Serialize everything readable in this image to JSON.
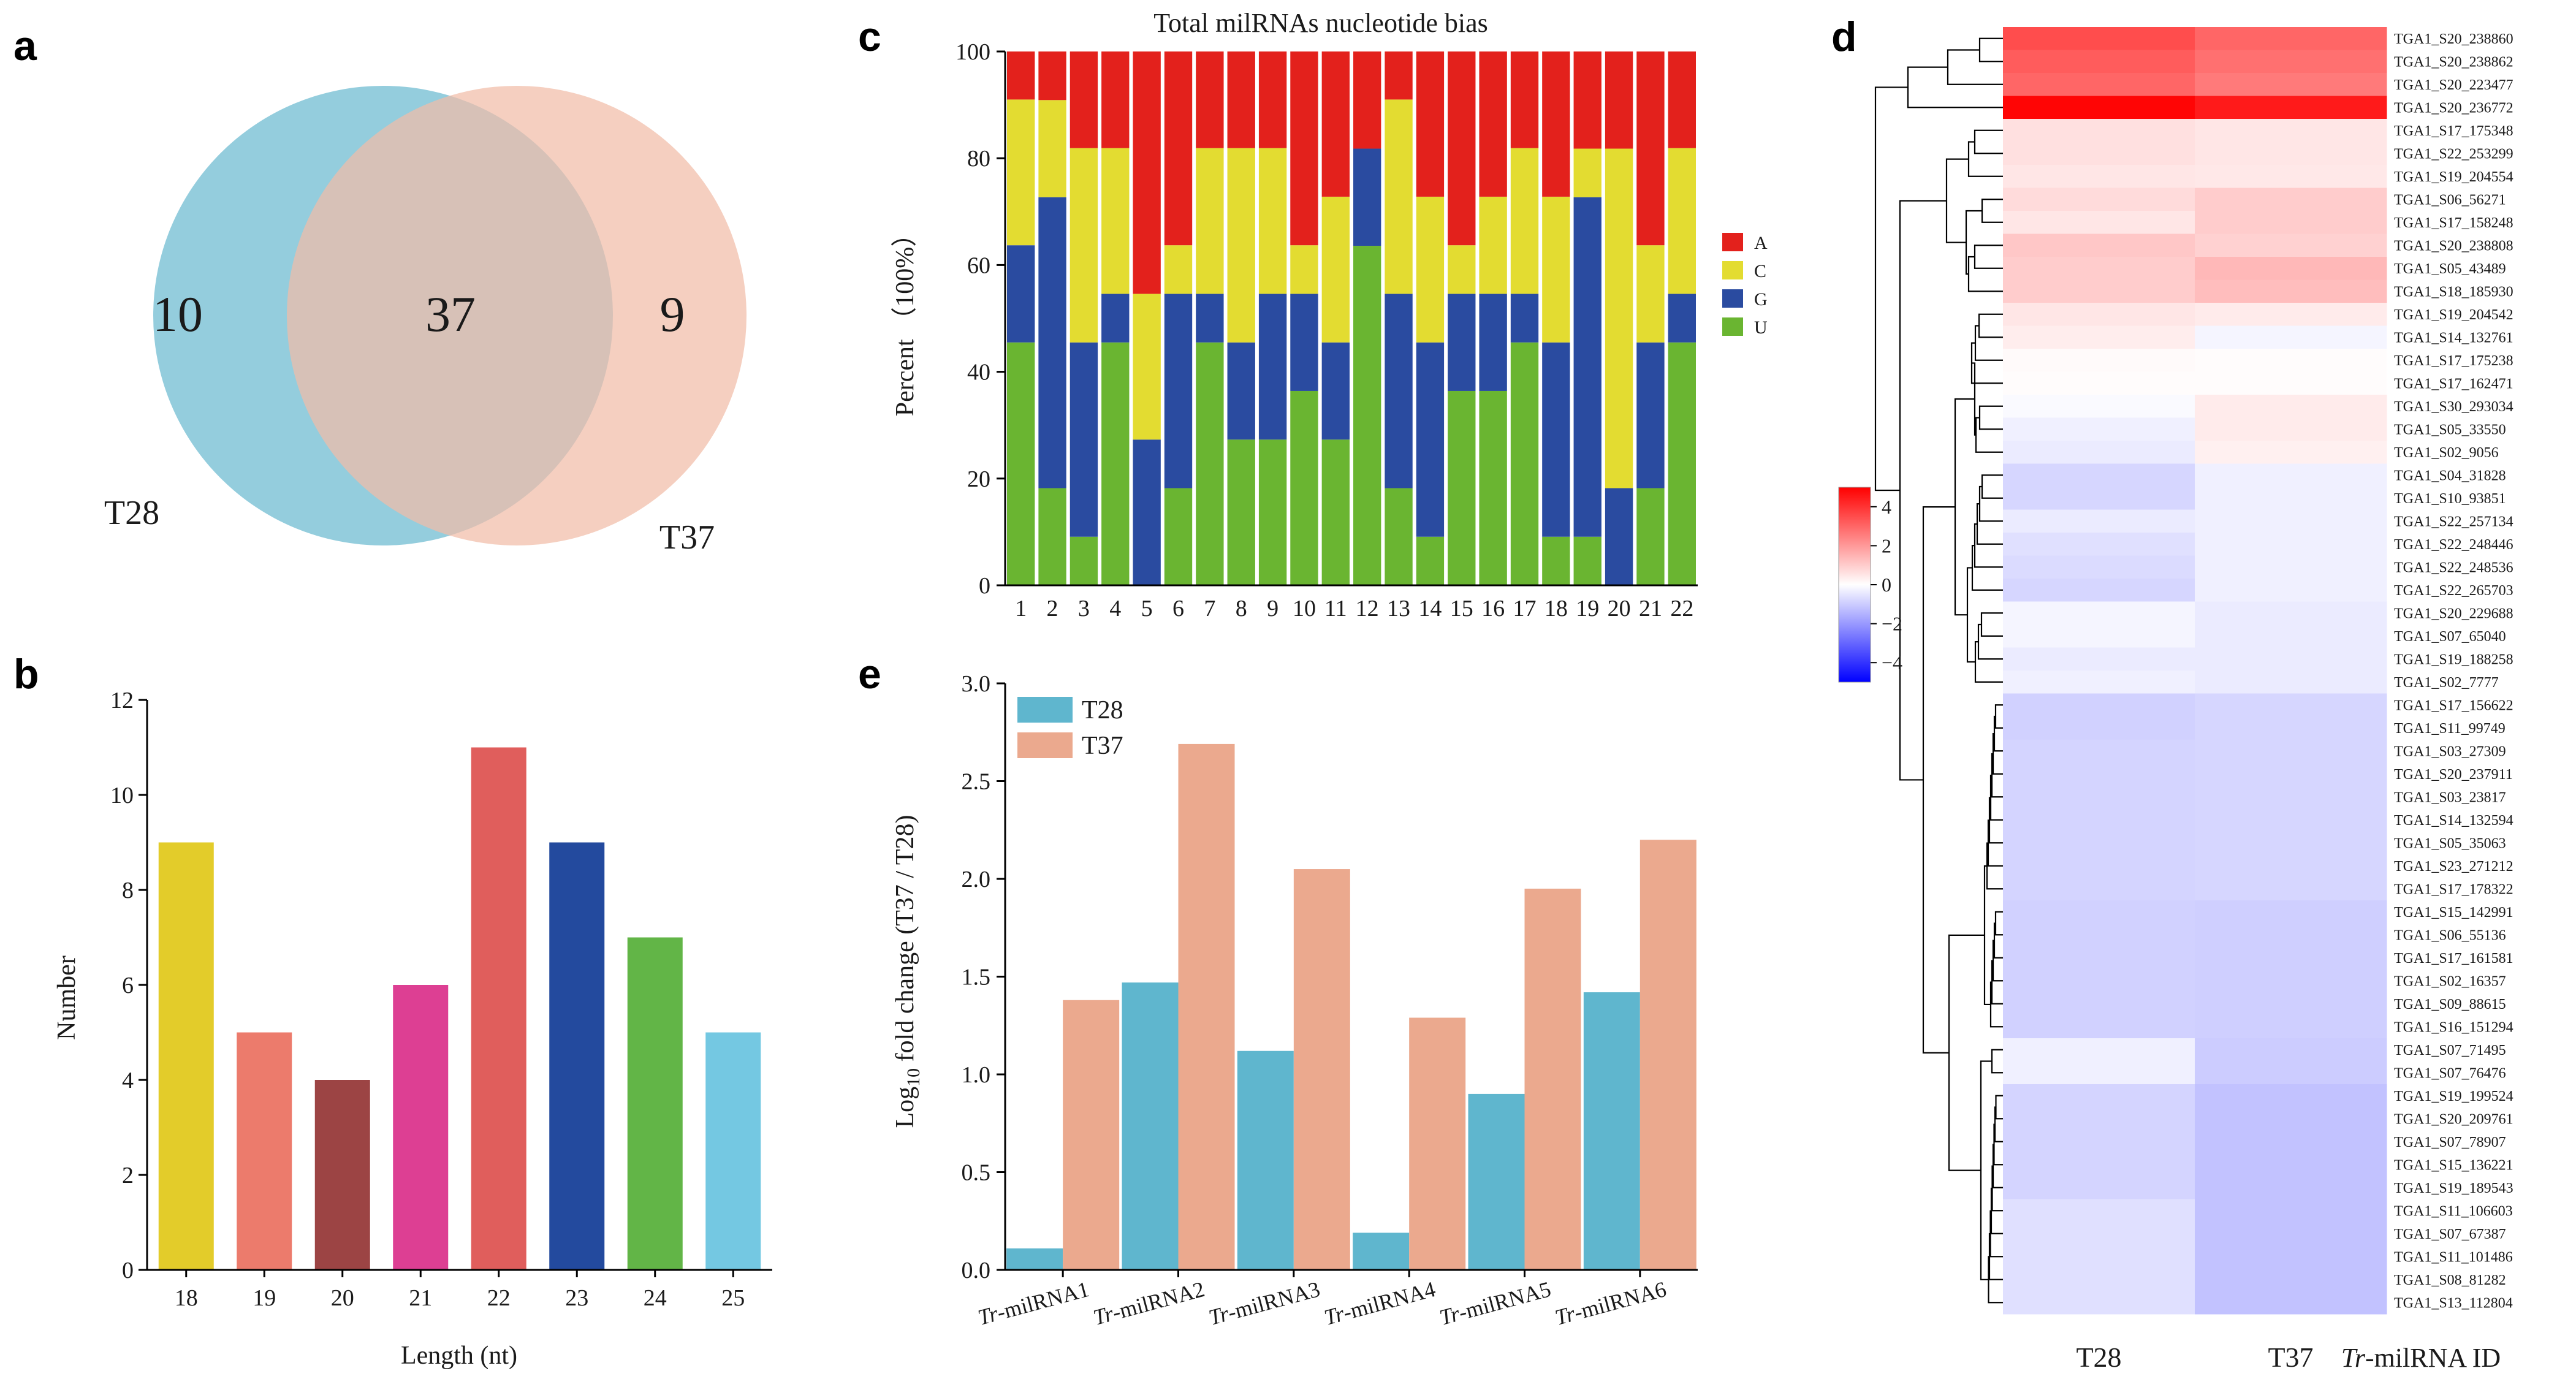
{
  "panels": {
    "a": {
      "letter": "a",
      "chart_type": "venn",
      "sets": [
        {
          "name": "T28",
          "color": "#8ecadb",
          "only": "10"
        },
        {
          "name": "T37",
          "color": "#f1bda8",
          "only": "9"
        }
      ],
      "shared": "37"
    },
    "b": {
      "letter": "b",
      "xlabel": "Length (nt)",
      "ylabel": "Number",
      "yticks": [
        "0",
        "2",
        "4",
        "6",
        "8",
        "10",
        "12"
      ]
    },
    "c": {
      "letter": "c",
      "title": "Total milRNAs nucleotide bias",
      "ylabel": "Percent （100%）",
      "yticks": [
        "0",
        "20",
        "40",
        "60",
        "80",
        "100"
      ]
    },
    "d": {
      "letter": "d",
      "columns": [
        "T28",
        "T37"
      ],
      "id_label_italic": "Tr",
      "id_label_rest": "-milRNA  ID",
      "colorbar_ticks": [
        "4",
        "2",
        "0",
        "−2",
        "−4"
      ],
      "colorbar_colors": {
        "high": "#ff0000",
        "mid": "#ffffff",
        "low": "#0000ff"
      }
    },
    "e": {
      "letter": "e",
      "ylabel_pre": "Log",
      "ylabel_sub": "10",
      "ylabel_post": " fold change (T37 / T28)",
      "yticks": [
        "0.0",
        "0.5",
        "1.0",
        "1.5",
        "2.0",
        "2.5",
        "3.0"
      ],
      "label_prefix": "Tr"
    }
  },
  "chart_data": [
    {
      "panel": "b",
      "type": "bar",
      "categories": [
        "18",
        "19",
        "20",
        "21",
        "22",
        "23",
        "24",
        "25"
      ],
      "values": [
        9,
        5,
        4,
        6,
        11,
        9,
        7,
        5
      ],
      "colors": [
        "#e3cc2a",
        "#ec7b6c",
        "#9c4444",
        "#dd3f93",
        "#e05e5c",
        "#234a9e",
        "#62b547",
        "#74c8e2"
      ],
      "xlabel": "Length (nt)",
      "ylabel": "Number",
      "ylim": [
        0,
        12
      ]
    },
    {
      "panel": "c",
      "type": "bar",
      "stacked": true,
      "title": "Total milRNAs nucleotide bias",
      "ylabel": "Percent （100%）",
      "ylim": [
        0,
        100
      ],
      "categories": [
        "1",
        "2",
        "3",
        "4",
        "5",
        "6",
        "7",
        "8",
        "9",
        "10",
        "11",
        "12",
        "13",
        "14",
        "15",
        "16",
        "17",
        "18",
        "19",
        "20",
        "21",
        "22"
      ],
      "series": [
        {
          "name": "U",
          "color": "#6ab531",
          "values": [
            45.5,
            18.2,
            9.1,
            45.5,
            0,
            18.2,
            45.5,
            27.3,
            27.3,
            36.4,
            27.3,
            63.6,
            18.2,
            9.1,
            36.4,
            36.4,
            45.5,
            9.1,
            9.1,
            0,
            18.2,
            45.5
          ]
        },
        {
          "name": "G",
          "color": "#2a4ba0",
          "values": [
            18.2,
            54.5,
            36.4,
            9.1,
            27.3,
            36.4,
            9.1,
            18.2,
            27.3,
            18.2,
            18.2,
            18.2,
            36.4,
            36.4,
            18.2,
            18.2,
            9.1,
            36.4,
            63.6,
            18.2,
            27.3,
            9.1
          ]
        },
        {
          "name": "C",
          "color": "#e3dc31",
          "values": [
            27.3,
            18.2,
            36.4,
            27.3,
            27.3,
            9.1,
            27.3,
            36.4,
            27.3,
            9.1,
            27.3,
            0,
            36.4,
            27.3,
            9.1,
            18.2,
            27.3,
            27.3,
            9.1,
            63.6,
            18.2,
            27.3
          ]
        },
        {
          "name": "A",
          "color": "#e3211c",
          "values": [
            9.0,
            9.1,
            18.1,
            18.1,
            45.4,
            36.3,
            18.1,
            18.1,
            18.1,
            36.3,
            27.2,
            18.2,
            9.0,
            27.2,
            36.3,
            27.2,
            18.1,
            27.2,
            18.2,
            18.2,
            36.3,
            18.1
          ]
        }
      ],
      "legend_order": [
        "A",
        "C",
        "G",
        "U"
      ],
      "legend": "right"
    },
    {
      "panel": "d",
      "type": "heatmap",
      "columns": [
        "T28",
        "T37"
      ],
      "vmin": -5,
      "vmax": 5,
      "rows": [
        {
          "id": "TGA1_S20_238860",
          "values": [
            3.5,
            3.0
          ]
        },
        {
          "id": "TGA1_S20_238862",
          "values": [
            3.2,
            2.8
          ]
        },
        {
          "id": "TGA1_S20_223477",
          "values": [
            3.0,
            2.6
          ]
        },
        {
          "id": "TGA1_S20_236772",
          "values": [
            4.9,
            4.5
          ]
        },
        {
          "id": "TGA1_S17_175348",
          "values": [
            0.6,
            0.5
          ]
        },
        {
          "id": "TGA1_S22_253299",
          "values": [
            0.6,
            0.5
          ]
        },
        {
          "id": "TGA1_S19_204554",
          "values": [
            0.5,
            0.45
          ]
        },
        {
          "id": "TGA1_S06_56271",
          "values": [
            0.7,
            1.0
          ]
        },
        {
          "id": "TGA1_S17_158248",
          "values": [
            0.5,
            1.0
          ]
        },
        {
          "id": "TGA1_S20_238808",
          "values": [
            1.1,
            0.9
          ]
        },
        {
          "id": "TGA1_S05_43489",
          "values": [
            1.0,
            1.4
          ]
        },
        {
          "id": "TGA1_S18_185930",
          "values": [
            1.0,
            1.3
          ]
        },
        {
          "id": "TGA1_S19_204542",
          "values": [
            0.5,
            0.4
          ]
        },
        {
          "id": "TGA1_S14_132761",
          "values": [
            0.35,
            -0.2
          ]
        },
        {
          "id": "TGA1_S17_175238",
          "values": [
            0.1,
            0.05
          ]
        },
        {
          "id": "TGA1_S17_162471",
          "values": [
            0.05,
            0.05
          ]
        },
        {
          "id": "TGA1_S30_293034",
          "values": [
            -0.1,
            0.4
          ]
        },
        {
          "id": "TGA1_S05_33550",
          "values": [
            -0.3,
            0.4
          ]
        },
        {
          "id": "TGA1_S02_9056",
          "values": [
            -0.4,
            0.3
          ]
        },
        {
          "id": "TGA1_S04_31828",
          "values": [
            -0.8,
            -0.3
          ]
        },
        {
          "id": "TGA1_S10_93851",
          "values": [
            -0.8,
            -0.3
          ]
        },
        {
          "id": "TGA1_S22_257134",
          "values": [
            -0.4,
            -0.3
          ]
        },
        {
          "id": "TGA1_S22_248446",
          "values": [
            -0.6,
            -0.3
          ]
        },
        {
          "id": "TGA1_S22_248536",
          "values": [
            -0.7,
            -0.3
          ]
        },
        {
          "id": "TGA1_S22_265703",
          "values": [
            -0.8,
            -0.3
          ]
        },
        {
          "id": "TGA1_S20_229688",
          "values": [
            -0.2,
            -0.4
          ]
        },
        {
          "id": "TGA1_S07_65040",
          "values": [
            -0.2,
            -0.4
          ]
        },
        {
          "id": "TGA1_S19_188258",
          "values": [
            -0.4,
            -0.4
          ]
        },
        {
          "id": "TGA1_S02_7777",
          "values": [
            -0.3,
            -0.4
          ]
        },
        {
          "id": "TGA1_S17_156622",
          "values": [
            -0.9,
            -0.8
          ]
        },
        {
          "id": "TGA1_S11_99749",
          "values": [
            -0.9,
            -0.8
          ]
        },
        {
          "id": "TGA1_S03_27309",
          "values": [
            -0.85,
            -0.8
          ]
        },
        {
          "id": "TGA1_S20_237911",
          "values": [
            -0.85,
            -0.8
          ]
        },
        {
          "id": "TGA1_S03_23817",
          "values": [
            -0.85,
            -0.8
          ]
        },
        {
          "id": "TGA1_S14_132594",
          "values": [
            -0.85,
            -0.8
          ]
        },
        {
          "id": "TGA1_S05_35063",
          "values": [
            -0.85,
            -0.8
          ]
        },
        {
          "id": "TGA1_S23_271212",
          "values": [
            -0.85,
            -0.8
          ]
        },
        {
          "id": "TGA1_S17_178322",
          "values": [
            -0.85,
            -0.8
          ]
        },
        {
          "id": "TGA1_S15_142991",
          "values": [
            -0.9,
            -0.95
          ]
        },
        {
          "id": "TGA1_S06_55136",
          "values": [
            -0.9,
            -0.95
          ]
        },
        {
          "id": "TGA1_S17_161581",
          "values": [
            -0.9,
            -0.95
          ]
        },
        {
          "id": "TGA1_S02_16357",
          "values": [
            -0.9,
            -0.95
          ]
        },
        {
          "id": "TGA1_S09_88615",
          "values": [
            -0.9,
            -0.95
          ]
        },
        {
          "id": "TGA1_S16_151294",
          "values": [
            -0.9,
            -0.95
          ]
        },
        {
          "id": "TGA1_S07_71495",
          "values": [
            -0.3,
            -1.0
          ]
        },
        {
          "id": "TGA1_S07_76476",
          "values": [
            -0.3,
            -1.0
          ]
        },
        {
          "id": "TGA1_S19_199524",
          "values": [
            -0.85,
            -1.2
          ]
        },
        {
          "id": "TGA1_S20_209761",
          "values": [
            -0.85,
            -1.2
          ]
        },
        {
          "id": "TGA1_S07_78907",
          "values": [
            -0.85,
            -1.2
          ]
        },
        {
          "id": "TGA1_S15_136221",
          "values": [
            -0.85,
            -1.2
          ]
        },
        {
          "id": "TGA1_S19_189543",
          "values": [
            -0.85,
            -1.2
          ]
        },
        {
          "id": "TGA1_S11_106603",
          "values": [
            -0.6,
            -1.2
          ]
        },
        {
          "id": "TGA1_S07_67387",
          "values": [
            -0.6,
            -1.2
          ]
        },
        {
          "id": "TGA1_S11_101486",
          "values": [
            -0.6,
            -1.2
          ]
        },
        {
          "id": "TGA1_S08_81282",
          "values": [
            -0.6,
            -1.2
          ]
        },
        {
          "id": "TGA1_S13_112804",
          "values": [
            -0.6,
            -1.2
          ]
        }
      ],
      "colorbar_range": [
        -5,
        5
      ]
    },
    {
      "panel": "e",
      "type": "bar",
      "categories": [
        "-milRNA1",
        "-milRNA2",
        "-milRNA3",
        "-milRNA4",
        "-milRNA5",
        "-milRNA6"
      ],
      "series": [
        {
          "name": "T28",
          "color": "#5fb6ce",
          "values": [
            0.11,
            1.47,
            1.12,
            0.19,
            0.9,
            1.42
          ]
        },
        {
          "name": "T37",
          "color": "#eba98e",
          "values": [
            1.38,
            2.69,
            2.05,
            1.29,
            1.95,
            2.2
          ]
        }
      ],
      "ylim": [
        0,
        3
      ],
      "legend": "top-left"
    }
  ]
}
